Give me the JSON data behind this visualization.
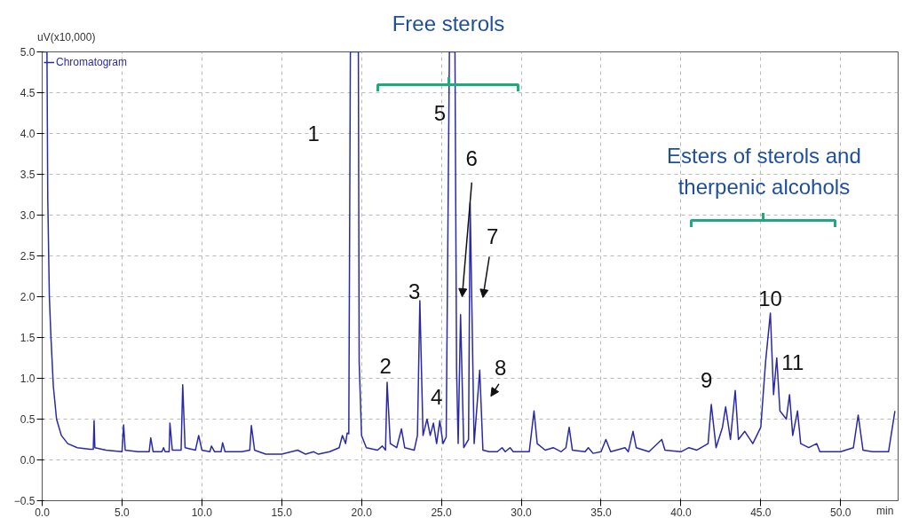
{
  "chart_data": {
    "type": "line",
    "ylabel": "uV(x10,000)",
    "xlabel": "min",
    "legend": "top left",
    "grid": true,
    "line_style": "solid",
    "xlim": [
      0,
      53.6
    ],
    "ylim": [
      -0.5,
      5.0
    ],
    "xticks": [
      {
        "value": 0,
        "label": "0.0"
      },
      {
        "value": 5,
        "label": "5.0"
      },
      {
        "value": 10,
        "label": "10.0"
      },
      {
        "value": 15,
        "label": "15.0"
      },
      {
        "value": 20,
        "label": "20.0"
      },
      {
        "value": 25,
        "label": "25.0"
      },
      {
        "value": 30,
        "label": "30.0"
      },
      {
        "value": 35,
        "label": "35.0"
      },
      {
        "value": 40,
        "label": "40.0"
      },
      {
        "value": 45,
        "label": "45.0"
      },
      {
        "value": 50,
        "label": "50.0"
      }
    ],
    "yticks": [
      -0.5,
      {
        "value": 0,
        "label": "0.0"
      },
      0.5,
      {
        "value": 1,
        "label": "1.0"
      },
      1.5,
      {
        "value": 2,
        "label": "2.0"
      },
      2.5,
      {
        "value": 3,
        "label": "3.0"
      },
      3.5,
      {
        "value": 4,
        "label": "4.0"
      },
      4.5,
      {
        "value": 5,
        "label": "5.0"
      }
    ],
    "series": [
      {
        "name": "Chromatogram",
        "color": "#2a2aa8",
        "x": [
          0.05,
          0.3,
          0.35,
          0.45,
          0.55,
          0.7,
          0.9,
          1.2,
          1.6,
          2.2,
          3.0,
          3.2,
          3.25,
          3.3,
          4.0,
          5.0,
          5.1,
          5.2,
          6.0,
          6.7,
          6.8,
          6.95,
          7.5,
          7.6,
          7.7,
          7.95,
          8.0,
          8.15,
          8.7,
          8.8,
          8.95,
          9.6,
          9.8,
          10.0,
          10.5,
          10.6,
          10.8,
          11.2,
          11.3,
          11.45,
          12.5,
          13.0,
          13.1,
          13.3,
          14.0,
          15.0,
          16.0,
          16.5,
          17.0,
          17.3,
          18.0,
          18.6,
          18.8,
          19.0,
          19.1,
          19.2,
          19.3,
          19.8,
          19.85,
          20.0,
          20.3,
          21.0,
          21.3,
          21.5,
          21.6,
          21.8,
          22.2,
          22.5,
          22.7,
          23.3,
          23.5,
          23.65,
          23.85,
          24.1,
          24.3,
          24.5,
          24.7,
          24.9,
          25.1,
          25.3,
          25.5,
          25.85,
          25.95,
          26.05,
          26.2,
          26.4,
          26.7,
          26.8,
          27.05,
          27.4,
          27.6,
          28.0,
          28.5,
          28.8,
          29.0,
          29.3,
          29.5,
          30.5,
          30.8,
          31.0,
          31.5,
          32.0,
          32.5,
          32.8,
          33.0,
          33.2,
          34.0,
          34.2,
          34.5,
          35.0,
          35.3,
          35.6,
          36.5,
          36.7,
          37.0,
          37.2,
          38.0,
          38.8,
          39.0,
          40.0,
          40.5,
          41.0,
          41.7,
          41.9,
          42.2,
          42.6,
          42.8,
          43.1,
          43.4,
          43.6,
          44.0,
          44.5,
          45.0,
          45.3,
          45.6,
          45.8,
          46.0,
          46.2,
          46.6,
          46.8,
          47.0,
          47.3,
          47.5,
          48.0,
          48.5,
          48.7,
          50.0,
          50.8,
          51.1,
          51.4,
          52.0,
          53.0,
          53.4
        ],
        "values": [
          5.0,
          5.0,
          3.2,
          2.0,
          1.5,
          0.9,
          0.5,
          0.3,
          0.2,
          0.15,
          0.13,
          0.13,
          0.48,
          0.15,
          0.12,
          0.1,
          0.43,
          0.12,
          0.1,
          0.1,
          0.27,
          0.1,
          0.1,
          0.15,
          0.1,
          0.1,
          0.45,
          0.12,
          0.12,
          0.92,
          0.15,
          0.12,
          0.3,
          0.12,
          0.1,
          0.17,
          0.1,
          0.1,
          0.21,
          0.1,
          0.1,
          0.12,
          0.42,
          0.12,
          0.07,
          0.07,
          0.12,
          0.07,
          0.1,
          0.07,
          0.1,
          0.15,
          0.3,
          0.2,
          0.33,
          0.32,
          5.0,
          5.0,
          1.2,
          0.3,
          0.15,
          0.12,
          0.17,
          0.12,
          0.95,
          0.2,
          0.15,
          0.38,
          0.15,
          0.12,
          0.3,
          1.95,
          0.3,
          0.5,
          0.3,
          0.45,
          0.2,
          0.48,
          0.2,
          0.28,
          5.0,
          5.0,
          1.1,
          0.2,
          1.78,
          0.15,
          0.25,
          3.15,
          0.2,
          1.1,
          0.12,
          0.1,
          0.1,
          0.15,
          0.1,
          0.15,
          0.1,
          0.1,
          0.6,
          0.2,
          0.12,
          0.15,
          0.1,
          0.15,
          0.4,
          0.12,
          0.1,
          0.15,
          0.08,
          0.1,
          0.25,
          0.1,
          0.15,
          0.1,
          0.35,
          0.15,
          0.1,
          0.25,
          0.12,
          0.1,
          0.15,
          0.12,
          0.2,
          0.68,
          0.15,
          0.4,
          0.65,
          0.25,
          0.85,
          0.25,
          0.35,
          0.2,
          0.4,
          1.2,
          1.8,
          0.8,
          1.25,
          0.6,
          0.5,
          0.8,
          0.3,
          0.6,
          0.2,
          0.15,
          0.2,
          0.1,
          0.1,
          0.15,
          0.55,
          0.12,
          0.1,
          0.1,
          0.6
        ]
      }
    ],
    "annotations": [
      "1",
      "2",
      "3",
      "4",
      "5",
      "6",
      "7",
      "8",
      "9",
      "10",
      "11",
      "Free sterols",
      "Esters of sterols and\ntherpenic alcohols"
    ]
  }
}
